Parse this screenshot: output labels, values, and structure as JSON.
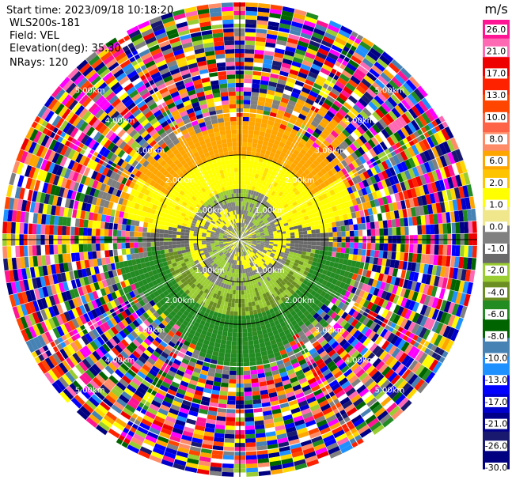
{
  "header": {
    "start_time": "Start time: 2023/09/18 10:18:20",
    "instrument": "WLS200s-181",
    "field": "Field: VEL",
    "elevation": "Elevation(deg): 35.30",
    "nrays": "NRays: 120"
  },
  "chart_data": {
    "type": "heatmap",
    "projection": "polar-ppi",
    "n_rays": 120,
    "range_unit": "km",
    "range_rings": [
      1.0,
      2.0,
      3.0,
      4.0,
      5.0
    ],
    "ring_labels": [
      "1.00km",
      "2.00km",
      "3.00km",
      "4.00km",
      "5.00km"
    ],
    "colorbar": {
      "unit": "m/s",
      "ticks": [
        "26.0",
        "21.0",
        "17.0",
        "13.0",
        "10.0",
        "8.0",
        "6.0",
        "2.0",
        "1.0",
        "0.0",
        "-1.0",
        "-2.0",
        "-4.0",
        "-6.0",
        "-8.0",
        "-10.0",
        "-13.0",
        "-17.0",
        "-21.0",
        "-26.0",
        "-30.0"
      ],
      "colors": [
        "#ff1493",
        "#ff69b4",
        "#ee0000",
        "#ff2200",
        "#ff4500",
        "#ff6347",
        "#ff8c69",
        "#ffa500",
        "#ffc400",
        "#ffff00",
        "#f0e68c",
        "#808080",
        "#696969",
        "#9acd32",
        "#6b8e23",
        "#228b22",
        "#006400",
        "#4682b4",
        "#1e90ff",
        "#0000ff",
        "#0000cd",
        "#00008b",
        "#191970",
        "#000080"
      ]
    },
    "regions": [
      {
        "range_km": [
          0,
          0.35
        ],
        "description_value": 0.0
      },
      {
        "sector": "north",
        "value_ms": 2.0
      },
      {
        "sector": "south",
        "value_ms": -4.0
      }
    ]
  }
}
